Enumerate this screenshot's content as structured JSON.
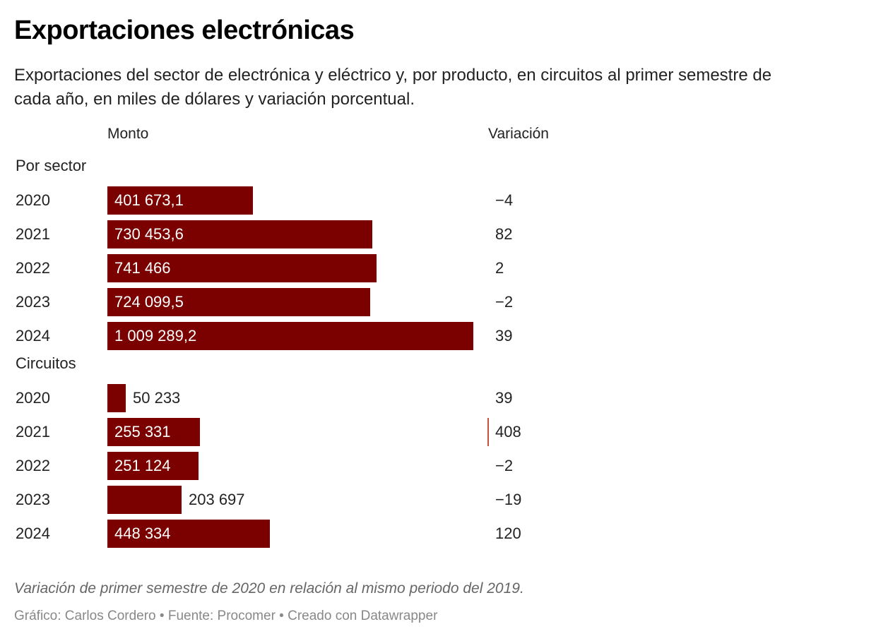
{
  "colors": {
    "bar": "#7b0000",
    "marker": "#c4513e"
  },
  "chart_data": {
    "type": "bar",
    "orientation": "horizontal",
    "title": "Exportaciones electrónicas",
    "subtitle": "Exportaciones del sector de electrónica y eléctrico y, por producto, en circuitos al primer semestre de cada año, en miles de dólares y variación porcentual.",
    "column_headers": {
      "amount": "Monto",
      "variation": "Variación"
    },
    "unit": "miles de dólares",
    "xlim": [
      0,
      1009289.2
    ],
    "groups": [
      {
        "name": "Por sector",
        "rows": [
          {
            "year": "2020",
            "value": 401673.1,
            "label": "401 673,1",
            "label_position": "inside",
            "variation": "−4"
          },
          {
            "year": "2021",
            "value": 730453.6,
            "label": "730 453,6",
            "label_position": "inside",
            "variation": "82"
          },
          {
            "year": "2022",
            "value": 741466,
            "label": "741 466",
            "label_position": "inside",
            "variation": "2"
          },
          {
            "year": "2023",
            "value": 724099.5,
            "label": "724 099,5",
            "label_position": "inside",
            "variation": "−2"
          },
          {
            "year": "2024",
            "value": 1009289.2,
            "label": "1 009 289,2",
            "label_position": "inside",
            "variation": "39"
          }
        ]
      },
      {
        "name": "Circuitos",
        "rows": [
          {
            "year": "2020",
            "value": 50233,
            "label": "50 233",
            "label_position": "outside",
            "variation": "39"
          },
          {
            "year": "2021",
            "value": 255331,
            "label": "255 331",
            "label_position": "inside",
            "variation": "408",
            "highlight": true
          },
          {
            "year": "2022",
            "value": 251124,
            "label": "251 124",
            "label_position": "inside",
            "variation": "−2"
          },
          {
            "year": "2023",
            "value": 203697,
            "label": "203 697",
            "label_position": "outside",
            "variation": "−19"
          },
          {
            "year": "2024",
            "value": 448334,
            "label": "448 334",
            "label_position": "inside",
            "variation": "120"
          }
        ]
      }
    ],
    "notes": "Variación de primer semestre de 2020 en relación al mismo periodo del 2019.",
    "credits": "Gráfico: Carlos Cordero • Fuente: Procomer • Creado con Datawrapper"
  }
}
